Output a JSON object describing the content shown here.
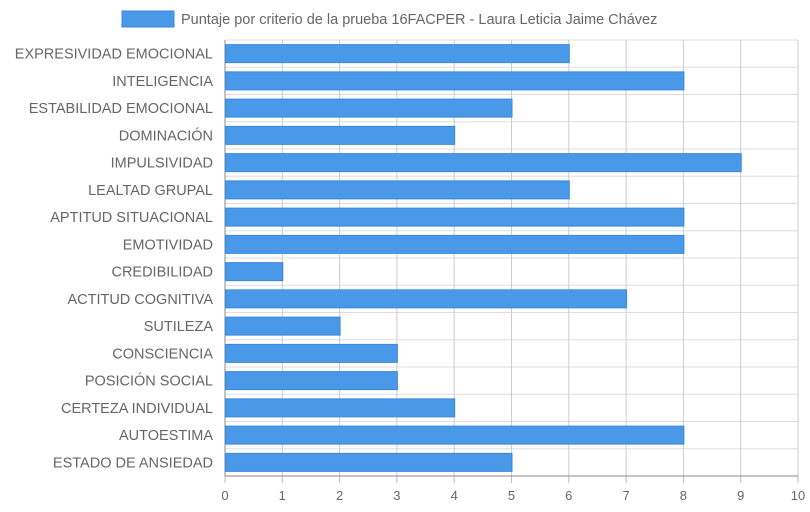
{
  "chart_data": {
    "type": "bar",
    "orientation": "horizontal",
    "categories": [
      "EXPRESIVIDAD EMOCIONAL",
      "INTELIGENCIA",
      "ESTABILIDAD EMOCIONAL",
      "DOMINACIÓN",
      "IMPULSIVIDAD",
      "LEALTAD GRUPAL",
      "APTITUD SITUACIONAL",
      "EMOTIVIDAD",
      "CREDIBILIDAD",
      "ACTITUD COGNITIVA",
      "SUTILEZA",
      "CONSCIENCIA",
      "POSICIÓN SOCIAL",
      "CERTEZA INDIVIDUAL",
      "AUTOESTIMA",
      "ESTADO DE ANSIEDAD"
    ],
    "series": [
      {
        "name": "Puntaje por criterio de la prueba 16FACPER - Laura Leticia Jaime Chávez",
        "values": [
          6,
          8,
          5,
          4,
          9,
          6,
          8,
          8,
          1,
          7,
          2,
          3,
          3,
          4,
          8,
          5
        ],
        "color": "#4a98e8"
      }
    ],
    "xlim": [
      0,
      10
    ],
    "xticks": [
      "0",
      "1",
      "2",
      "3",
      "4",
      "5",
      "6",
      "7",
      "8",
      "9",
      "10"
    ],
    "grid": true,
    "legend_position": "top-center",
    "colors": {
      "bar_fill": "#4a98e8",
      "bar_border": "#3a88dd",
      "grid": "#dddddd",
      "axis": "#888888",
      "text": "#666666"
    }
  }
}
